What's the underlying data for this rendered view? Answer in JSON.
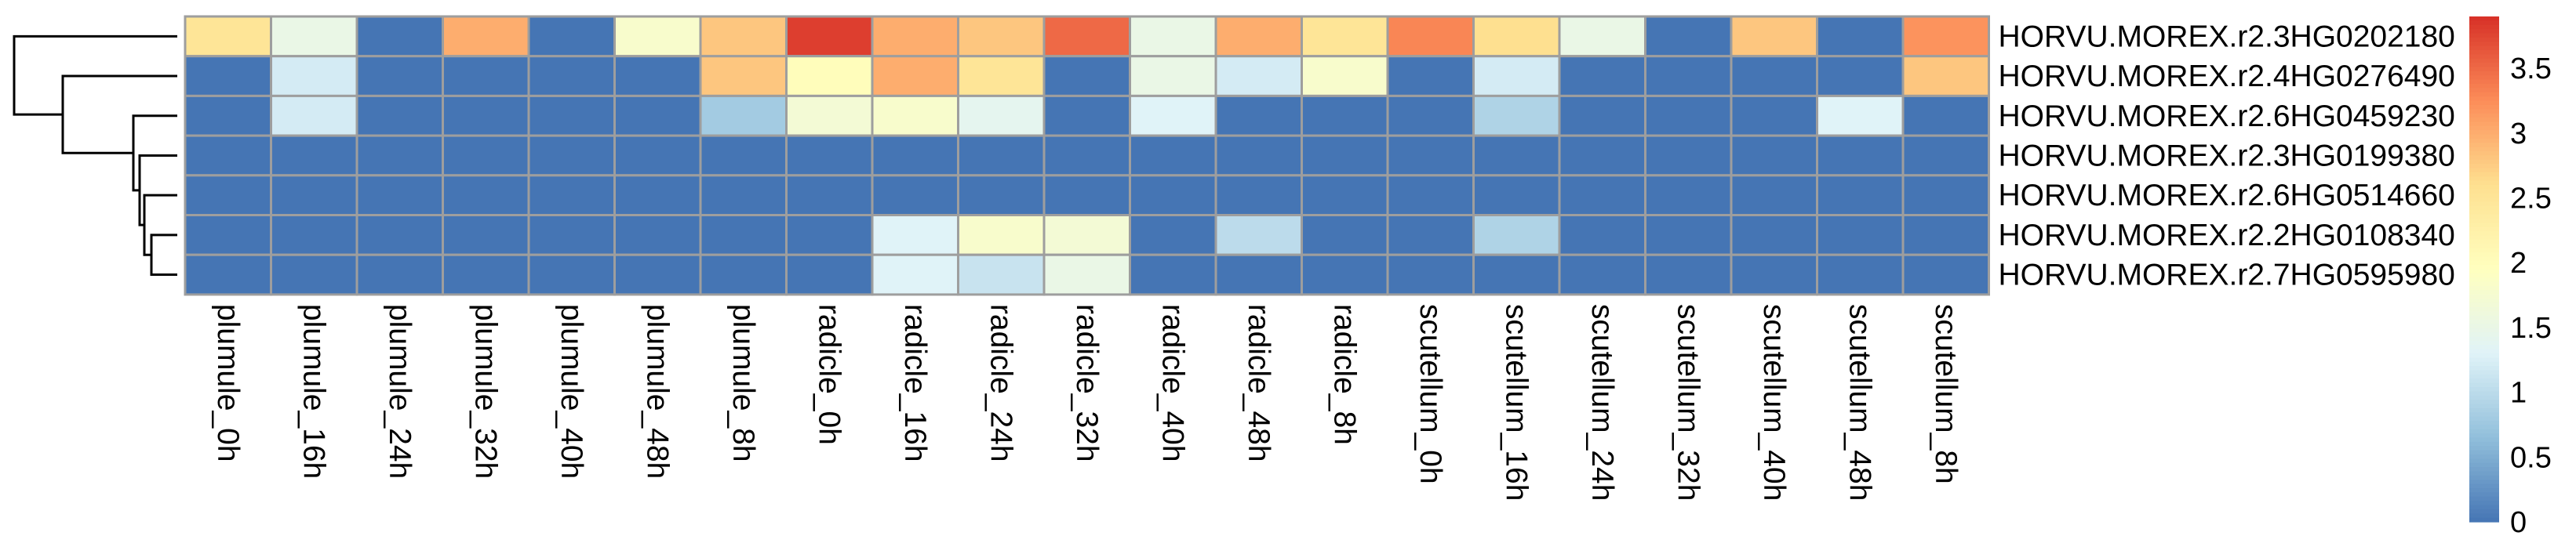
{
  "chart_data": {
    "type": "heatmap",
    "columns": [
      "plumule_0h",
      "plumule_16h",
      "plumule_24h",
      "plumule_32h",
      "plumule_40h",
      "plumule_48h",
      "plumule_8h",
      "radicle_0h",
      "radicle_16h",
      "radicle_24h",
      "radicle_32h",
      "radicle_40h",
      "radicle_48h",
      "radicle_8h",
      "scutellum_0h",
      "scutellum_16h",
      "scutellum_24h",
      "scutellum_32h",
      "scutellum_40h",
      "scutellum_48h",
      "scutellum_8h"
    ],
    "rows": [
      "HORVU.MOREX.r2.3HG0202180",
      "HORVU.MOREX.r2.4HG0276490",
      "HORVU.MOREX.r2.6HG0459230",
      "HORVU.MOREX.r2.3HG0199380",
      "HORVU.MOREX.r2.6HG0514660",
      "HORVU.MOREX.r2.2HG0108340",
      "HORVU.MOREX.r2.7HG0595980"
    ],
    "values": [
      [
        2.5,
        1.5,
        0,
        3.0,
        0,
        1.8,
        2.8,
        3.8,
        3.0,
        2.8,
        3.5,
        1.5,
        3.0,
        2.5,
        3.3,
        2.6,
        1.5,
        0,
        2.8,
        0,
        3.2
      ],
      [
        0,
        1.2,
        0,
        0,
        0,
        0,
        2.8,
        2.0,
        3.0,
        2.5,
        0,
        1.5,
        1.2,
        1.8,
        0,
        1.2,
        0,
        0,
        0,
        0,
        2.8
      ],
      [
        0,
        1.2,
        0,
        0,
        0,
        0,
        0.8,
        1.7,
        1.8,
        1.4,
        0,
        1.3,
        0,
        0,
        0,
        0.9,
        0,
        0,
        0,
        1.3,
        0
      ],
      [
        0,
        0,
        0,
        0,
        0,
        0,
        0,
        0,
        0,
        0,
        0,
        0,
        0,
        0,
        0,
        0,
        0,
        0,
        0,
        0,
        0
      ],
      [
        0,
        0,
        0,
        0,
        0,
        0,
        0,
        0,
        0,
        0,
        0,
        0,
        0,
        0,
        0,
        0,
        0,
        0,
        0,
        0,
        0
      ],
      [
        0,
        0,
        0,
        0,
        0,
        0,
        0,
        0,
        1.3,
        1.8,
        1.7,
        0,
        1.0,
        0,
        0,
        0.9,
        0,
        0,
        0,
        0,
        0
      ],
      [
        0,
        0,
        0,
        0,
        0,
        0,
        0,
        0,
        1.3,
        1.1,
        1.5,
        0,
        0,
        0,
        0,
        0,
        0,
        0,
        0,
        0,
        0
      ]
    ],
    "value_range": [
      0,
      3.9
    ],
    "colorbar": {
      "ticks": [
        "0",
        "0.5",
        "1",
        "1.5",
        "2",
        "2.5",
        "3",
        "3.5"
      ],
      "tick_values": [
        0,
        0.5,
        1,
        1.5,
        2,
        2.5,
        3,
        3.5
      ],
      "colors": [
        "#4575B4",
        "#91BFDB",
        "#E0F3F8",
        "#FFFFBF",
        "#FEE090",
        "#FC8D59",
        "#D73027"
      ]
    },
    "row_dendrogram": "left",
    "cell_border_color": "#9E9E9E"
  }
}
